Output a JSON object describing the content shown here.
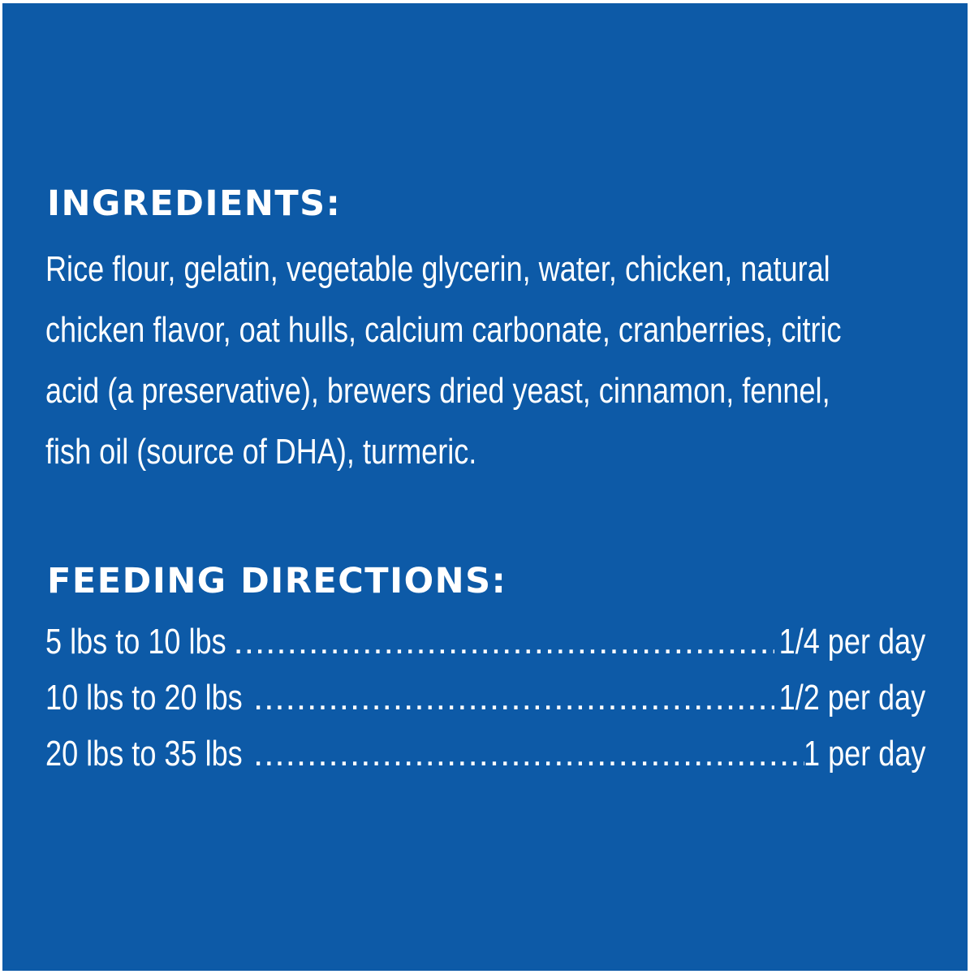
{
  "colors": {
    "background": "#0d5aa7",
    "text": "#ffffff",
    "border": "#ffffff"
  },
  "ingredients": {
    "heading": "INGREDIENTS:",
    "lines": [
      "Rice flour, gelatin, vegetable glycerin, water, chicken, natural",
      "chicken flavor, oat hulls, calcium carbonate, cranberries, citric",
      "acid (a preservative), brewers dried yeast, cinnamon, fennel,",
      "fish oil (source of DHA), turmeric."
    ]
  },
  "feeding_directions": {
    "heading": "FEEDING DIRECTIONS:",
    "rows": [
      {
        "weight": "5 lbs to 10 lbs",
        "amount": "1/4 per day"
      },
      {
        "weight": "10 lbs to 20 lbs",
        "amount": "1/2 per day"
      },
      {
        "weight": "20 lbs to 35 lbs",
        "amount": "1 per day"
      }
    ]
  }
}
